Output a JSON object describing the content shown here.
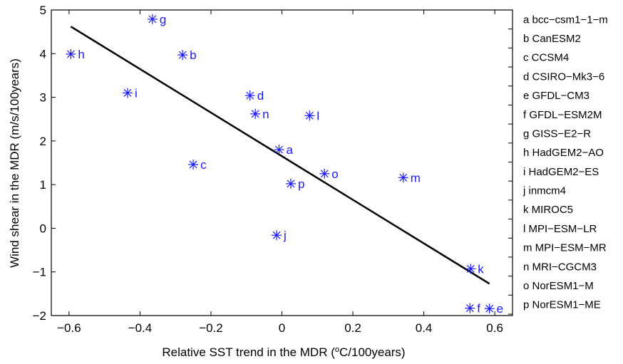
{
  "chart_data": {
    "type": "scatter",
    "xlabel_main": "Relative SST trend in the MDR (",
    "xlabel_sup": "o",
    "xlabel_tail": "C/100years)",
    "ylabel": "Wind shear in the MDR (m/s/100years)",
    "xlim": [
      -0.65,
      0.65
    ],
    "ylim": [
      -2,
      5
    ],
    "xticks": [
      -0.6,
      -0.4,
      -0.2,
      0,
      0.2,
      0.4,
      0.6
    ],
    "xtick_labels": [
      "−0.6",
      "−0.4",
      "−0.2",
      "0",
      "0.2",
      "0.4",
      "0.6"
    ],
    "yticks": [
      -2,
      -1,
      0,
      1,
      2,
      3,
      4,
      5
    ],
    "ytick_labels": [
      "−2",
      "−1",
      "0",
      "1",
      "2",
      "3",
      "4",
      "5"
    ],
    "marker_color": "#1a1aff",
    "line_color": "#000000",
    "points": [
      {
        "label": "a",
        "x": -0.008,
        "y": 1.8
      },
      {
        "label": "b",
        "x": -0.28,
        "y": 3.97
      },
      {
        "label": "c",
        "x": -0.25,
        "y": 1.46
      },
      {
        "label": "d",
        "x": -0.09,
        "y": 3.04
      },
      {
        "label": "e",
        "x": 0.585,
        "y": -1.84
      },
      {
        "label": "f",
        "x": 0.53,
        "y": -1.83
      },
      {
        "label": "g",
        "x": -0.365,
        "y": 4.79
      },
      {
        "label": "h",
        "x": -0.595,
        "y": 3.99
      },
      {
        "label": "i",
        "x": -0.435,
        "y": 3.1
      },
      {
        "label": "j",
        "x": -0.015,
        "y": -0.16
      },
      {
        "label": "k",
        "x": 0.532,
        "y": -0.93
      },
      {
        "label": "l",
        "x": 0.078,
        "y": 2.58
      },
      {
        "label": "m",
        "x": 0.342,
        "y": 1.16
      },
      {
        "label": "n",
        "x": -0.075,
        "y": 2.62
      },
      {
        "label": "o",
        "x": 0.12,
        "y": 1.25
      },
      {
        "label": "p",
        "x": 0.025,
        "y": 1.02
      }
    ],
    "regression_line": {
      "x": [
        -0.595,
        0.585
      ],
      "y": [
        4.62,
        -1.27
      ]
    },
    "legend_entries": [
      "a  bcc−csm1−1−m",
      "b  CanESM2",
      "c  CCSM4",
      "d  CSIRO−Mk3−6",
      "e  GFDL−CM3",
      "f  GFDL−ESM2M",
      "g  GISS−E2−R",
      "h  HadGEM2−AO",
      "i  HadGEM2−ES",
      "j  inmcm4",
      "k  MIROC5",
      "l  MPI−ESM−LR",
      "m  MPI−ESM−MR",
      "n  MRI−CGCM3",
      "o  NorESM1−M",
      "p  NorESM1−ME"
    ]
  }
}
